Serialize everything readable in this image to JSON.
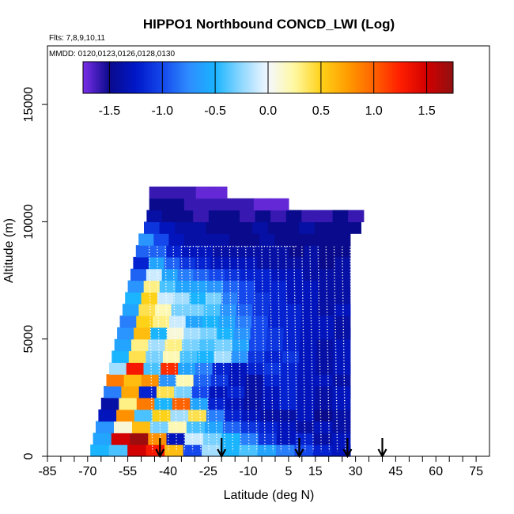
{
  "chart_data": {
    "type": "heatmap",
    "title": "HIPPO1 Northbound CONCD_LWI (Log)",
    "flights_note": "Flts: 7,8,9,10,11",
    "dates_note": "MMDD: 0120,0123,0126,0128,0130",
    "xlabel": "Latitude (deg N)",
    "ylabel": "Altitude (m)",
    "xlim": [
      -85,
      80
    ],
    "ylim": [
      0,
      17500
    ],
    "x_ticks": [
      -85,
      -70,
      -55,
      -40,
      -25,
      -10,
      5,
      15,
      30,
      45,
      60,
      75
    ],
    "x_tick_labels": [
      "-85",
      "-70",
      "-55",
      "-40",
      "-25",
      "-10",
      "5",
      "15",
      "30",
      "45",
      "60",
      "75"
    ],
    "x_minor_ticks": [
      -80,
      -75,
      -65,
      -60,
      -50,
      -45,
      -35,
      -30,
      -20,
      -15,
      -5,
      0,
      10,
      20,
      25,
      35,
      40,
      50,
      55,
      65,
      70
    ],
    "y_ticks": [
      0,
      5000,
      10000,
      15000
    ],
    "y_tick_labels": [
      "0",
      "5000",
      "10000",
      "15000"
    ],
    "colorbar": {
      "range": [
        -1.75,
        1.75
      ],
      "ticks": [
        -1.5,
        -1.0,
        -0.5,
        0.0,
        0.5,
        1.0,
        1.5
      ],
      "tick_labels": [
        "-1.5",
        "-1.0",
        "-0.5",
        "0.0",
        "0.5",
        "1.0",
        "1.5"
      ],
      "palette": [
        {
          "v": -1.75,
          "c": "#7b2fe8"
        },
        {
          "v": -1.5,
          "c": "#0a0a8c"
        },
        {
          "v": -1.25,
          "c": "#0018c8"
        },
        {
          "v": -1.0,
          "c": "#1448ec"
        },
        {
          "v": -0.75,
          "c": "#2e8cff"
        },
        {
          "v": -0.5,
          "c": "#1ab4ff"
        },
        {
          "v": -0.25,
          "c": "#90d8ff"
        },
        {
          "v": 0.0,
          "c": "#f4f8ff"
        },
        {
          "v": 0.25,
          "c": "#fff8a0"
        },
        {
          "v": 0.5,
          "c": "#ffd21a"
        },
        {
          "v": 0.75,
          "c": "#ff9d00"
        },
        {
          "v": 1.0,
          "c": "#ff6200"
        },
        {
          "v": 1.25,
          "c": "#ff1e00"
        },
        {
          "v": 1.5,
          "c": "#d20000"
        },
        {
          "v": 1.75,
          "c": "#901010"
        }
      ]
    },
    "arrows_lat": [
      -43,
      -20,
      9,
      27,
      40
    ],
    "profile_lats": [
      -47,
      -44,
      -41,
      -38,
      -35,
      -32,
      -29,
      -26,
      -23,
      -20,
      -17,
      -14,
      -11,
      -8,
      -5,
      -2,
      1,
      4,
      7,
      10,
      13,
      16,
      19,
      22,
      25,
      28
    ],
    "top_segment": {
      "lat_start": -35,
      "lat_end": 8,
      "alt": 8950
    },
    "series": [
      {
        "alt_bin": [
          0,
          500
        ],
        "lat_start": -69,
        "lat_end": 28,
        "values": [
          -0.5,
          -0.4,
          1.5,
          1.3,
          0.6,
          -1.0,
          -0.2,
          -0.5,
          -0.4,
          -0.6,
          -0.8,
          -1.0,
          -1.2,
          -1.3
        ]
      },
      {
        "alt_bin": [
          500,
          1000
        ],
        "lat_start": -68,
        "lat_end": 28,
        "values": [
          -0.6,
          1.5,
          1.7,
          0.8,
          -1.3,
          -0.1,
          -0.3,
          -0.5,
          -0.8,
          -1.1,
          -1.3,
          -1.2,
          -1.4,
          -1.3
        ]
      },
      {
        "alt_bin": [
          1000,
          1500
        ],
        "lat_start": -67,
        "lat_end": 28,
        "values": [
          -0.7,
          0.1,
          0.6,
          -0.3,
          0.2,
          -0.4,
          -0.6,
          -0.9,
          -1.1,
          -1.2,
          -1.3,
          -1.4,
          -1.3,
          -1.4
        ]
      },
      {
        "alt_bin": [
          1500,
          2000
        ],
        "lat_start": -66,
        "lat_end": 28,
        "values": [
          -1.3,
          0.8,
          -0.4,
          0.5,
          -0.2,
          0.4,
          -0.8,
          -1.2,
          -1.3,
          -1.4,
          -1.4,
          -1.3,
          -1.5,
          -1.4
        ]
      },
      {
        "alt_bin": [
          2000,
          2500
        ],
        "lat_start": -65,
        "lat_end": 28,
        "values": [
          -1.4,
          0.3,
          0.9,
          -0.5,
          1.0,
          -0.6,
          -1.2,
          -1.3,
          -1.4,
          -1.3,
          -1.2,
          -1.3,
          -1.4,
          -1.3
        ]
      },
      {
        "alt_bin": [
          2500,
          3000
        ],
        "lat_start": -64,
        "lat_end": 28,
        "values": [
          -0.8,
          0.7,
          -1.2,
          0.4,
          -0.3,
          -1.0,
          -1.3,
          -1.2,
          -1.4,
          -1.3,
          -1.2,
          -1.3,
          -1.4,
          -1.3
        ]
      },
      {
        "alt_bin": [
          3000,
          3500
        ],
        "lat_start": -63,
        "lat_end": 28,
        "values": [
          0.9,
          0.6,
          0.8,
          -0.7,
          0.2,
          -0.9,
          -1.1,
          -1.3,
          -1.4,
          -1.2,
          -1.2,
          -1.3,
          -1.3,
          -1.4
        ]
      },
      {
        "alt_bin": [
          3500,
          4000
        ],
        "lat_start": -62,
        "lat_end": 28,
        "values": [
          -0.2,
          1.3,
          -0.4,
          1.2,
          -0.6,
          -0.8,
          -1.2,
          -1.3,
          -1.2,
          -1.1,
          -1.2,
          -1.3,
          -1.4,
          -1.3
        ]
      },
      {
        "alt_bin": [
          4000,
          4500
        ],
        "lat_start": -61,
        "lat_end": 28,
        "values": [
          -0.5,
          0.4,
          -0.3,
          0.2,
          -0.4,
          -0.5,
          -0.2,
          -0.7,
          -1.1,
          -1.2,
          -1.1,
          -1.3,
          -1.4,
          -1.3
        ]
      },
      {
        "alt_bin": [
          4500,
          5000
        ],
        "lat_start": -60,
        "lat_end": 28,
        "values": [
          -0.6,
          0.3,
          -0.2,
          0.3,
          -0.3,
          -0.4,
          -0.3,
          -0.6,
          -1.0,
          -1.1,
          -1.2,
          -1.3,
          -1.4,
          -1.3
        ]
      },
      {
        "alt_bin": [
          5000,
          5500
        ],
        "lat_start": -59,
        "lat_end": 28,
        "values": [
          -0.7,
          0.6,
          -0.5,
          0.1,
          -0.2,
          -0.3,
          -0.5,
          -0.7,
          -1.0,
          -1.1,
          -1.2,
          -1.3,
          -1.3,
          -1.4
        ]
      },
      {
        "alt_bin": [
          5500,
          6000
        ],
        "lat_start": -58,
        "lat_end": 28,
        "values": [
          -0.8,
          0.5,
          0.3,
          -0.1,
          -0.6,
          -0.5,
          -0.6,
          -0.8,
          -1.0,
          -1.2,
          -1.2,
          -1.3,
          -1.3,
          -1.4
        ]
      },
      {
        "alt_bin": [
          6000,
          6500
        ],
        "lat_start": -57,
        "lat_end": 28,
        "values": [
          -0.6,
          0.4,
          0.2,
          -0.3,
          -0.3,
          -0.4,
          -0.7,
          -0.9,
          -1.1,
          -1.2,
          -1.2,
          -1.3,
          -1.4,
          -1.3
        ]
      },
      {
        "alt_bin": [
          6500,
          7000
        ],
        "lat_start": -56,
        "lat_end": 28,
        "values": [
          -0.5,
          0.5,
          -0.1,
          -0.2,
          -0.5,
          -0.3,
          -0.8,
          -1.0,
          -1.1,
          -1.2,
          -1.3,
          -1.3,
          -1.4,
          -1.4
        ]
      },
      {
        "alt_bin": [
          7000,
          7500
        ],
        "lat_start": -55,
        "lat_end": 28,
        "values": [
          -0.7,
          0.3,
          -0.4,
          -0.6,
          -0.6,
          -0.7,
          -0.9,
          -1.0,
          -1.2,
          -1.2,
          -1.3,
          -1.3,
          -1.4,
          -1.4
        ]
      },
      {
        "alt_bin": [
          7500,
          8000
        ],
        "lat_start": -54,
        "lat_end": 28,
        "values": [
          -0.9,
          -0.1,
          -0.6,
          -0.8,
          -0.9,
          -1.0,
          -1.1,
          -1.2,
          -1.2,
          -1.3,
          -1.3,
          -1.4,
          -1.4,
          -1.4
        ]
      },
      {
        "alt_bin": [
          8000,
          8500
        ],
        "lat_start": -53,
        "lat_end": 28,
        "values": [
          -1.2,
          -0.6,
          -0.9,
          -1.1,
          -1.2,
          -1.3,
          -1.3,
          -1.3,
          -1.4,
          -1.4,
          -1.4,
          -1.4,
          -1.5,
          -1.4
        ]
      },
      {
        "alt_bin": [
          8500,
          9000
        ],
        "lat_start": -52,
        "lat_end": 28,
        "values": [
          -0.9,
          -0.9,
          -1.2,
          -1.3,
          -1.3,
          -1.4,
          -1.4,
          -1.4,
          -1.4,
          -1.4,
          -1.5,
          -1.4,
          -1.5,
          -1.5
        ]
      },
      {
        "alt_bin": [
          9000,
          9500
        ],
        "lat_start": -51,
        "lat_end": 28,
        "values": [
          -0.7,
          -1.0,
          -1.3,
          -1.4,
          -1.4,
          -1.4,
          -1.5,
          -1.5,
          -1.4,
          -1.5,
          -1.5,
          -1.5,
          -1.5,
          -1.5
        ]
      },
      {
        "alt_bin": [
          9500,
          10000
        ],
        "lat_start": -49,
        "lat_end": 32,
        "values": [
          -1.1,
          -1.3,
          -1.4,
          -1.4,
          -1.5,
          -1.5,
          -1.5,
          -1.4,
          -1.5,
          -1.5,
          -1.4,
          -1.5,
          -1.5,
          -1.5
        ]
      },
      {
        "alt_bin": [
          10000,
          10500
        ],
        "lat_start": -48,
        "lat_end": 33,
        "values": [
          -1.4,
          -1.5,
          -1.5,
          -1.6,
          -1.5,
          -1.5,
          -1.6,
          -1.5,
          -1.6,
          -1.5,
          -1.6,
          -1.6,
          -1.5,
          -1.6
        ]
      },
      {
        "alt_bin": [
          10500,
          11000
        ],
        "lat_start": -47,
        "lat_end": 5,
        "values": [
          -1.5,
          -1.5,
          -1.6,
          -1.6,
          -1.6,
          -1.6,
          -1.7,
          -1.7
        ]
      },
      {
        "alt_bin": [
          11000,
          11500
        ],
        "lat_start": -47,
        "lat_end": -18,
        "values": [
          -1.6,
          -1.6,
          -1.6,
          -1.7,
          -1.7
        ]
      }
    ]
  }
}
